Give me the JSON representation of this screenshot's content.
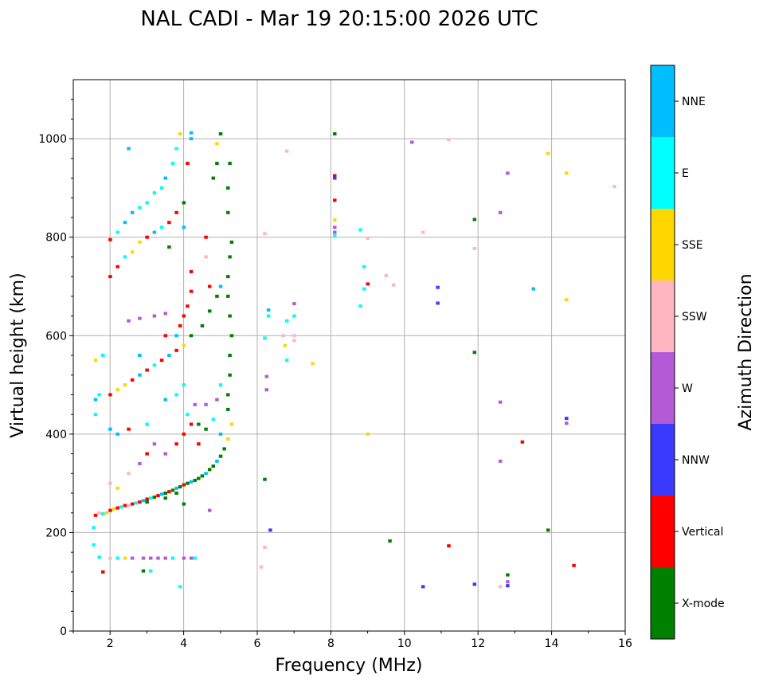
{
  "chart_data": {
    "type": "scatter",
    "title": "NAL CADI - Mar 19 20:15:00 2026 UTC",
    "xlabel": "Frequency (MHz)",
    "ylabel": "Virtual height (km)",
    "xlim": [
      1,
      16
    ],
    "ylim": [
      0,
      1120
    ],
    "xticks": [
      2,
      4,
      6,
      8,
      10,
      12,
      14,
      16
    ],
    "yticks": [
      0,
      200,
      400,
      600,
      800,
      1000
    ],
    "grid": true,
    "colorbar": {
      "label": "Azimuth Direction",
      "categories": [
        "X-mode",
        "Vertical",
        "NNW",
        "W",
        "SSW",
        "SSE",
        "E",
        "NNE"
      ],
      "colors": [
        "#008000",
        "#ff0000",
        "#3a3aff",
        "#b45ad6",
        "#ffb6c1",
        "#ffd700",
        "#00ffff",
        "#00bfff"
      ]
    },
    "points_format": [
      "frequency_mhz",
      "virtual_height_km",
      "direction_index"
    ],
    "points": [
      [
        1.6,
        235,
        1
      ],
      [
        1.7,
        240,
        4
      ],
      [
        1.8,
        238,
        6
      ],
      [
        1.9,
        240,
        5
      ],
      [
        2.0,
        245,
        1
      ],
      [
        2.1,
        248,
        5
      ],
      [
        2.2,
        250,
        1
      ],
      [
        2.3,
        252,
        6
      ],
      [
        2.4,
        255,
        1
      ],
      [
        2.5,
        255,
        4
      ],
      [
        2.6,
        258,
        1
      ],
      [
        2.7,
        260,
        6
      ],
      [
        2.8,
        262,
        1
      ],
      [
        2.9,
        265,
        7
      ],
      [
        3.0,
        268,
        1
      ],
      [
        3.1,
        270,
        6
      ],
      [
        3.2,
        272,
        0
      ],
      [
        3.3,
        275,
        1
      ],
      [
        3.4,
        278,
        7
      ],
      [
        3.5,
        280,
        0
      ],
      [
        3.6,
        283,
        1
      ],
      [
        3.7,
        286,
        0
      ],
      [
        3.8,
        290,
        7
      ],
      [
        3.9,
        293,
        0
      ],
      [
        4.0,
        297,
        1
      ],
      [
        4.1,
        300,
        0
      ],
      [
        4.2,
        303,
        7
      ],
      [
        4.3,
        306,
        0
      ],
      [
        4.4,
        310,
        0
      ],
      [
        4.5,
        315,
        0
      ],
      [
        4.6,
        320,
        7
      ],
      [
        4.7,
        328,
        0
      ],
      [
        4.8,
        335,
        0
      ],
      [
        4.9,
        345,
        7
      ],
      [
        5.0,
        355,
        0
      ],
      [
        5.1,
        370,
        0
      ],
      [
        5.2,
        390,
        5
      ],
      [
        5.3,
        420,
        5
      ],
      [
        3.0,
        262,
        0
      ],
      [
        3.5,
        270,
        0
      ],
      [
        4.0,
        258,
        0
      ],
      [
        3.8,
        280,
        0
      ],
      [
        5.2,
        450,
        0
      ],
      [
        5.2,
        480,
        0
      ],
      [
        5.25,
        520,
        0
      ],
      [
        5.25,
        560,
        0
      ],
      [
        5.3,
        600,
        0
      ],
      [
        5.25,
        640,
        0
      ],
      [
        5.2,
        680,
        0
      ],
      [
        5.2,
        720,
        0
      ],
      [
        5.25,
        760,
        0
      ],
      [
        5.3,
        790,
        0
      ],
      [
        5.2,
        850,
        0
      ],
      [
        5.2,
        900,
        0
      ],
      [
        5.25,
        950,
        0
      ],
      [
        5.0,
        1010,
        0
      ],
      [
        4.9,
        990,
        5
      ],
      [
        2.0,
        300,
        4
      ],
      [
        2.2,
        290,
        5
      ],
      [
        2.5,
        320,
        4
      ],
      [
        2.8,
        340,
        3
      ],
      [
        3.0,
        360,
        1
      ],
      [
        3.2,
        380,
        3
      ],
      [
        3.5,
        360,
        3
      ],
      [
        3.8,
        380,
        1
      ],
      [
        4.0,
        400,
        1
      ],
      [
        4.2,
        420,
        1
      ],
      [
        4.4,
        420,
        0
      ],
      [
        4.6,
        410,
        0
      ],
      [
        4.8,
        430,
        6
      ],
      [
        5.0,
        400,
        7
      ],
      [
        4.4,
        380,
        1
      ],
      [
        4.1,
        440,
        6
      ],
      [
        4.3,
        460,
        3
      ],
      [
        4.6,
        460,
        3
      ],
      [
        4.9,
        470,
        3
      ],
      [
        5.0,
        500,
        6
      ],
      [
        1.6,
        470,
        7
      ],
      [
        1.6,
        440,
        6
      ],
      [
        1.7,
        480,
        6
      ],
      [
        2.0,
        480,
        1
      ],
      [
        2.2,
        490,
        5
      ],
      [
        2.4,
        500,
        5
      ],
      [
        2.6,
        510,
        1
      ],
      [
        2.8,
        520,
        7
      ],
      [
        3.0,
        530,
        1
      ],
      [
        3.2,
        540,
        6
      ],
      [
        3.4,
        550,
        1
      ],
      [
        3.6,
        560,
        7
      ],
      [
        3.8,
        570,
        1
      ],
      [
        4.0,
        580,
        5
      ],
      [
        4.2,
        600,
        0
      ],
      [
        4.5,
        620,
        0
      ],
      [
        4.7,
        650,
        0
      ],
      [
        4.9,
        680,
        0
      ],
      [
        5.0,
        700,
        7
      ],
      [
        3.8,
        600,
        7
      ],
      [
        3.9,
        620,
        1
      ],
      [
        4.0,
        640,
        1
      ],
      [
        4.1,
        660,
        1
      ],
      [
        4.2,
        690,
        1
      ],
      [
        3.5,
        600,
        1
      ],
      [
        2.8,
        560,
        7
      ],
      [
        1.6,
        550,
        5
      ],
      [
        1.8,
        560,
        6
      ],
      [
        2.0,
        410,
        7
      ],
      [
        2.2,
        400,
        7
      ],
      [
        2.5,
        410,
        1
      ],
      [
        3.0,
        420,
        6
      ],
      [
        3.5,
        470,
        7
      ],
      [
        3.8,
        480,
        6
      ],
      [
        4.0,
        500,
        6
      ],
      [
        2.0,
        720,
        1
      ],
      [
        2.2,
        740,
        1
      ],
      [
        2.4,
        760,
        6
      ],
      [
        2.6,
        770,
        5
      ],
      [
        2.8,
        790,
        5
      ],
      [
        3.0,
        800,
        1
      ],
      [
        3.2,
        810,
        7
      ],
      [
        3.4,
        820,
        6
      ],
      [
        3.6,
        830,
        1
      ],
      [
        3.8,
        850,
        1
      ],
      [
        4.0,
        870,
        0
      ],
      [
        2.0,
        795,
        1
      ],
      [
        2.2,
        810,
        6
      ],
      [
        2.4,
        830,
        7
      ],
      [
        2.6,
        850,
        7
      ],
      [
        2.8,
        860,
        6
      ],
      [
        3.0,
        870,
        6
      ],
      [
        3.2,
        890,
        6
      ],
      [
        3.4,
        900,
        6
      ],
      [
        3.5,
        920,
        7
      ],
      [
        3.7,
        950,
        6
      ],
      [
        3.8,
        980,
        6
      ],
      [
        2.5,
        630,
        3
      ],
      [
        2.8,
        635,
        3
      ],
      [
        3.2,
        640,
        3
      ],
      [
        3.5,
        645,
        3
      ],
      [
        3.6,
        780,
        0
      ],
      [
        4.0,
        820,
        7
      ],
      [
        4.1,
        950,
        1
      ],
      [
        4.2,
        1000,
        7
      ],
      [
        3.9,
        1010,
        5
      ],
      [
        4.2,
        1012,
        7
      ],
      [
        2.5,
        980,
        7
      ],
      [
        4.8,
        920,
        0
      ],
      [
        4.9,
        950,
        0
      ],
      [
        4.6,
        800,
        1
      ],
      [
        4.6,
        760,
        4
      ],
      [
        4.7,
        700,
        1
      ],
      [
        4.2,
        730,
        1
      ],
      [
        1.7,
        150,
        6
      ],
      [
        2.0,
        148,
        4
      ],
      [
        2.2,
        148,
        6
      ],
      [
        2.4,
        148,
        5
      ],
      [
        2.6,
        148,
        3
      ],
      [
        2.9,
        148,
        3
      ],
      [
        3.1,
        148,
        3
      ],
      [
        3.3,
        148,
        3
      ],
      [
        3.5,
        148,
        3
      ],
      [
        3.7,
        148,
        6
      ],
      [
        4.0,
        148,
        3
      ],
      [
        4.2,
        148,
        3
      ],
      [
        4.3,
        148,
        6
      ],
      [
        1.55,
        175,
        6
      ],
      [
        1.55,
        210,
        6
      ],
      [
        1.8,
        120,
        1
      ],
      [
        2.9,
        122,
        0
      ],
      [
        3.1,
        122,
        6
      ],
      [
        3.9,
        90,
        6
      ],
      [
        4.7,
        245,
        3
      ],
      [
        6.1,
        130,
        4
      ],
      [
        6.2,
        170,
        4
      ],
      [
        6.2,
        308,
        0
      ],
      [
        6.25,
        490,
        3
      ],
      [
        6.25,
        517,
        3
      ],
      [
        6.2,
        595,
        6
      ],
      [
        6.3,
        652,
        7
      ],
      [
        6.3,
        640,
        6
      ],
      [
        6.35,
        205,
        2
      ],
      [
        6.2,
        807,
        4
      ],
      [
        6.7,
        600,
        4
      ],
      [
        6.8,
        630,
        6
      ],
      [
        6.75,
        580,
        5
      ],
      [
        7.0,
        600,
        4
      ],
      [
        7.0,
        590,
        4
      ],
      [
        7.0,
        640,
        6
      ],
      [
        7.0,
        665,
        3
      ],
      [
        6.8,
        550,
        6
      ],
      [
        7.5,
        543,
        5
      ],
      [
        6.8,
        975,
        4
      ],
      [
        8.1,
        1010,
        0
      ],
      [
        8.1,
        925,
        1
      ],
      [
        8.1,
        920,
        2
      ],
      [
        8.1,
        875,
        1
      ],
      [
        8.1,
        835,
        5
      ],
      [
        8.1,
        820,
        3
      ],
      [
        8.1,
        810,
        3
      ],
      [
        8.1,
        803,
        6
      ],
      [
        8.8,
        815,
        6
      ],
      [
        8.9,
        740,
        6
      ],
      [
        9.0,
        705,
        1
      ],
      [
        8.9,
        695,
        6
      ],
      [
        8.8,
        660,
        6
      ],
      [
        9.0,
        400,
        5
      ],
      [
        9.5,
        722,
        4
      ],
      [
        9.7,
        703,
        4
      ],
      [
        9.0,
        798,
        4
      ],
      [
        9.6,
        183,
        0
      ],
      [
        10.2,
        993,
        3
      ],
      [
        10.5,
        810,
        4
      ],
      [
        10.5,
        90,
        2
      ],
      [
        10.9,
        698,
        2
      ],
      [
        10.9,
        666,
        2
      ],
      [
        11.2,
        998,
        4
      ],
      [
        11.2,
        173,
        1
      ],
      [
        11.9,
        836,
        0
      ],
      [
        11.9,
        777,
        4
      ],
      [
        11.9,
        566,
        0
      ],
      [
        11.9,
        95,
        2
      ],
      [
        12.6,
        850,
        3
      ],
      [
        12.6,
        465,
        3
      ],
      [
        12.6,
        345,
        3
      ],
      [
        12.6,
        90,
        4
      ],
      [
        12.8,
        930,
        3
      ],
      [
        12.8,
        114,
        0
      ],
      [
        12.8,
        100,
        3
      ],
      [
        12.8,
        92,
        2
      ],
      [
        13.2,
        384,
        1
      ],
      [
        13.5,
        695,
        7
      ],
      [
        13.9,
        970,
        5
      ],
      [
        13.9,
        205,
        0
      ],
      [
        14.4,
        930,
        5
      ],
      [
        14.4,
        673,
        5
      ],
      [
        14.4,
        432,
        2
      ],
      [
        14.4,
        422,
        3
      ],
      [
        14.6,
        133,
        1
      ],
      [
        15.7,
        903,
        4
      ]
    ]
  }
}
